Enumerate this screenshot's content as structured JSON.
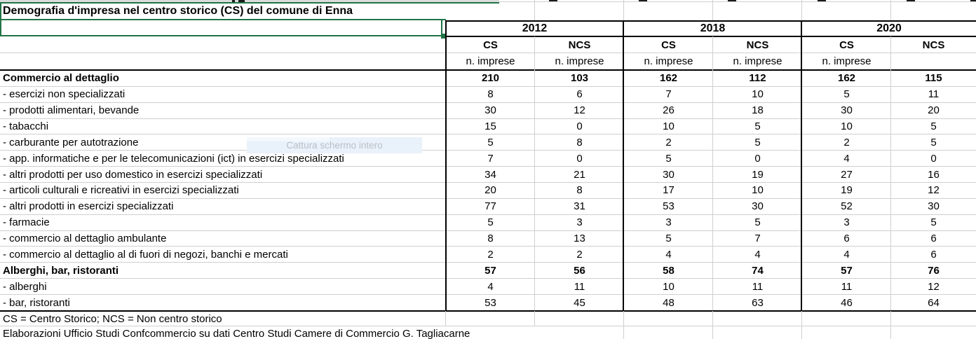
{
  "title": "Demografia d'impresa nel centro storico (CS) del comune di Enna",
  "tooltip_overlay": "Cattura schermo intero",
  "table": {
    "years": [
      "2012",
      "2018",
      "2020"
    ],
    "col_headers": [
      "CS",
      "NCS",
      "CS",
      "NCS",
      "CS",
      "NCS"
    ],
    "unit_labels": [
      "n. imprese",
      "n. imprese",
      "n. imprese",
      "n. imprese",
      "n. imprese"
    ],
    "rows": [
      {
        "label": "Commercio al dettaglio",
        "bold": true,
        "values": [
          "210",
          "103",
          "162",
          "112",
          "162",
          "115"
        ]
      },
      {
        "label": "- esercizi non specializzati",
        "bold": false,
        "values": [
          "8",
          "6",
          "7",
          "10",
          "5",
          "11"
        ]
      },
      {
        "label": "- prodotti alimentari, bevande",
        "bold": false,
        "values": [
          "30",
          "12",
          "26",
          "18",
          "30",
          "20"
        ]
      },
      {
        "label": "- tabacchi",
        "bold": false,
        "values": [
          "15",
          "0",
          "10",
          "5",
          "10",
          "5"
        ]
      },
      {
        "label": "- carburante per autotrazione",
        "bold": false,
        "values": [
          "5",
          "8",
          "2",
          "5",
          "2",
          "5"
        ]
      },
      {
        "label": "- app. informatiche e per le telecomunicazioni (ict) in esercizi specializzati",
        "bold": false,
        "values": [
          "7",
          "0",
          "5",
          "0",
          "4",
          "0"
        ]
      },
      {
        "label": "- altri prodotti per uso domestico in esercizi specializzati",
        "bold": false,
        "values": [
          "34",
          "21",
          "30",
          "19",
          "27",
          "16"
        ]
      },
      {
        "label": "- articoli culturali e ricreativi in esercizi specializzati",
        "bold": false,
        "values": [
          "20",
          "8",
          "17",
          "10",
          "19",
          "12"
        ]
      },
      {
        "label": "- altri prodotti in esercizi specializzati",
        "bold": false,
        "values": [
          "77",
          "31",
          "53",
          "30",
          "52",
          "30"
        ]
      },
      {
        "label": "- farmacie",
        "bold": false,
        "values": [
          "5",
          "3",
          "3",
          "5",
          "3",
          "5"
        ]
      },
      {
        "label": "- commercio al dettaglio ambulante",
        "bold": false,
        "values": [
          "8",
          "13",
          "5",
          "7",
          "6",
          "6"
        ]
      },
      {
        "label": "- commercio al dettaglio al di fuori di negozi, banchi e mercati",
        "bold": false,
        "values": [
          "2",
          "2",
          "4",
          "4",
          "4",
          "6"
        ]
      },
      {
        "label": "Alberghi, bar, ristoranti",
        "bold": true,
        "values": [
          "57",
          "56",
          "58",
          "74",
          "57",
          "76"
        ]
      },
      {
        "label": "- alberghi",
        "bold": false,
        "values": [
          "4",
          "11",
          "10",
          "11",
          "11",
          "12"
        ]
      },
      {
        "label": "- bar, ristoranti",
        "bold": false,
        "values": [
          "53",
          "45",
          "48",
          "63",
          "46",
          "64"
        ]
      }
    ]
  },
  "footnotes": [
    "CS = Centro Storico; NCS = Non centro storico",
    "Elaborazioni Ufficio Studi Confcommercio su dati Centro Studi Camere di Commercio G. Tagliacarne"
  ],
  "colors": {
    "selection_green": "#217346",
    "gridline_gray": "#cfcfcf",
    "border_black": "#000000",
    "tooltip_bg": "#e9f1fa",
    "tooltip_text": "#b9c0c7"
  }
}
